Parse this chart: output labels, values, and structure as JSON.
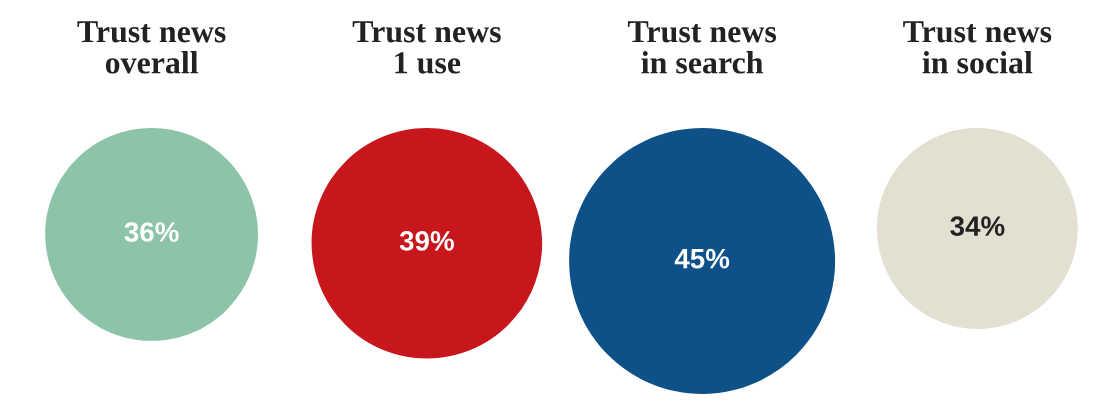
{
  "chart_data": {
    "type": "other",
    "categories": [
      "Trust news\noverall",
      "Trust news\n1 use",
      "Trust news\nin search",
      "Trust news\nin social"
    ],
    "values": [
      36,
      39,
      45,
      34
    ],
    "colors": [
      "#8dc3a7",
      "#c8161d",
      "#0e5189",
      "#e3e0d2"
    ],
    "data_labels": true,
    "value_labels": [
      "36%",
      "39%",
      "45%",
      "34%"
    ]
  }
}
